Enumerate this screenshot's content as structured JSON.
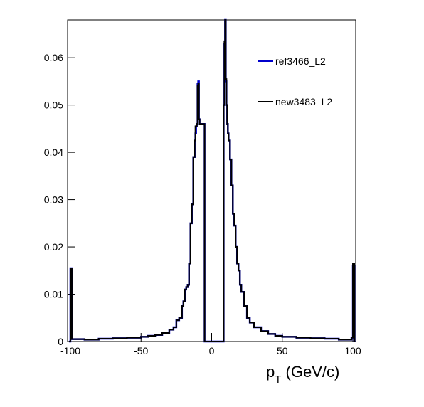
{
  "chart_data": {
    "type": "histogram",
    "xlabel": "p",
    "xlabel_sub": "T",
    "xlabel_unit": " (GeV/c)",
    "xlim": [
      -102,
      102
    ],
    "ylim": [
      0,
      0.068
    ],
    "xticks": [
      -100,
      -50,
      0,
      50,
      100
    ],
    "xtick_labels": [
      "-100",
      "-50",
      "0",
      "50",
      "100"
    ],
    "yticks": [
      0,
      0.01,
      0.02,
      0.03,
      0.04,
      0.05,
      0.06
    ],
    "ytick_labels": [
      "0",
      "0.01",
      "0.02",
      "0.03",
      "0.04",
      "0.05",
      "0.06"
    ],
    "legend_position": "top-right",
    "colors": {
      "ref": "#0000cc",
      "new": "#000000",
      "axis": "#000000"
    },
    "series": [
      {
        "name": "ref3466_L2",
        "color": "#0000cc",
        "x": [
          -101,
          -100,
          -99,
          -90,
          -80,
          -70,
          -60,
          -50,
          -45,
          -40,
          -35,
          -30,
          -27,
          -25,
          -23,
          -21,
          -20,
          -19,
          -18,
          -17,
          -16,
          -15,
          -14,
          -13,
          -12,
          -11.5,
          -11,
          -10.5,
          -10,
          -9.5,
          -9,
          -8.5,
          -5,
          5,
          8.5,
          9,
          9.5,
          10,
          10.5,
          11,
          11.5,
          12,
          13,
          14,
          15,
          16,
          17,
          18,
          19,
          20,
          21,
          23,
          25,
          27,
          30,
          35,
          40,
          45,
          50,
          60,
          70,
          80,
          90,
          99,
          100,
          101
        ],
        "y": [
          0,
          0.0155,
          0.0005,
          0.0004,
          0.0006,
          0.0007,
          0.0008,
          0.001,
          0.0012,
          0.0014,
          0.0018,
          0.0025,
          0.003,
          0.0045,
          0.005,
          0.0075,
          0.0085,
          0.011,
          0.0115,
          0.012,
          0.0165,
          0.025,
          0.029,
          0.039,
          0.0425,
          0.044,
          0.0455,
          0.046,
          0.0545,
          0.055,
          0.047,
          0.046,
          0,
          0,
          0.05,
          0.063,
          0.068,
          0.055,
          0.05,
          0.046,
          0.044,
          0.0425,
          0.0385,
          0.033,
          0.027,
          0.0245,
          0.02,
          0.0165,
          0.015,
          0.012,
          0.0105,
          0.0075,
          0.005,
          0.004,
          0.003,
          0.0022,
          0.0016,
          0.0012,
          0.001,
          0.0008,
          0.0007,
          0.0006,
          0.0004,
          0.0008,
          0.016,
          0
        ]
      },
      {
        "name": "new3483_L2",
        "color": "#000000",
        "x": [
          -101,
          -100,
          -99,
          -90,
          -80,
          -70,
          -60,
          -50,
          -45,
          -40,
          -35,
          -30,
          -27,
          -25,
          -23,
          -21,
          -20,
          -19,
          -18,
          -17,
          -16,
          -15,
          -14,
          -13,
          -12,
          -11.5,
          -11,
          -10.5,
          -10,
          -9.5,
          -9,
          -8.5,
          -5,
          5,
          8.5,
          9,
          9.5,
          10,
          10.5,
          11,
          11.5,
          12,
          13,
          14,
          15,
          16,
          17,
          18,
          19,
          20,
          21,
          23,
          25,
          27,
          30,
          35,
          40,
          45,
          50,
          60,
          70,
          80,
          90,
          99,
          100,
          101
        ],
        "y": [
          0,
          0.0155,
          0.0005,
          0.0004,
          0.0006,
          0.0007,
          0.0008,
          0.001,
          0.0012,
          0.0014,
          0.0018,
          0.0025,
          0.003,
          0.0045,
          0.005,
          0.0075,
          0.0085,
          0.011,
          0.0115,
          0.012,
          0.0165,
          0.025,
          0.029,
          0.039,
          0.0425,
          0.0455,
          0.0455,
          0.046,
          0.054,
          0.0545,
          0.047,
          0.046,
          0,
          0,
          0.05,
          0.0635,
          0.068,
          0.0555,
          0.05,
          0.046,
          0.044,
          0.0425,
          0.0385,
          0.033,
          0.027,
          0.0245,
          0.02,
          0.0165,
          0.015,
          0.012,
          0.0105,
          0.0075,
          0.005,
          0.004,
          0.003,
          0.0022,
          0.0016,
          0.0012,
          0.001,
          0.0008,
          0.0007,
          0.0006,
          0.0004,
          0.0008,
          0.0165,
          0
        ]
      }
    ]
  }
}
